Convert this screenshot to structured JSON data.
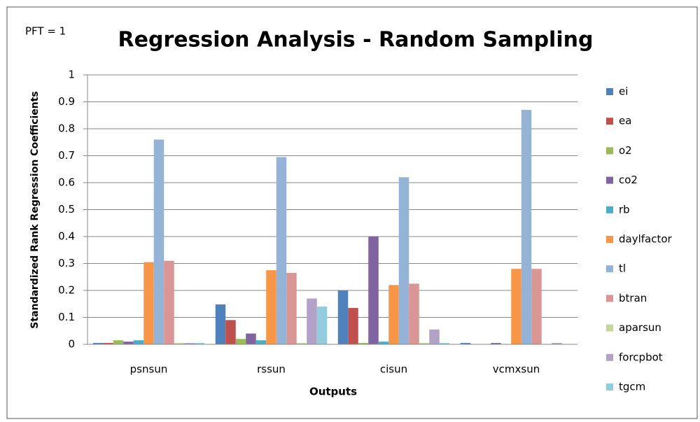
{
  "chart_data": {
    "type": "bar",
    "title": "Regression Analysis - Random Sampling",
    "annotation": "PFT = 1",
    "x_label": "Outputs",
    "y_label": "Standardized Rank Regression Coefficients",
    "categories": [
      "psnsun",
      "rssun",
      "cisun",
      "vcmxsun"
    ],
    "series": [
      {
        "name": "ei",
        "color": "#4f81bd",
        "values": [
          0.005,
          0.148,
          0.2,
          0.005
        ]
      },
      {
        "name": "ea",
        "color": "#c0504d",
        "values": [
          0.005,
          0.09,
          0.135,
          0
        ]
      },
      {
        "name": "o2",
        "color": "#9bbb59",
        "values": [
          0.015,
          0.02,
          0.005,
          0
        ]
      },
      {
        "name": "co2",
        "color": "#8064a2",
        "values": [
          0.01,
          0.04,
          0.4,
          0.005
        ]
      },
      {
        "name": "rb",
        "color": "#4bacc6",
        "values": [
          0.015,
          0.015,
          0.01,
          0
        ]
      },
      {
        "name": "daylfactor",
        "color": "#f79646",
        "values": [
          0.305,
          0.275,
          0.22,
          0.28
        ]
      },
      {
        "name": "tl",
        "color": "#95b3d7",
        "values": [
          0.76,
          0.695,
          0.62,
          0.87
        ]
      },
      {
        "name": "btran",
        "color": "#d99694",
        "values": [
          0.31,
          0.265,
          0.225,
          0.28
        ]
      },
      {
        "name": "aparsun",
        "color": "#c3d69b",
        "values": [
          0.005,
          0.005,
          0.005,
          0
        ]
      },
      {
        "name": "forcpbot",
        "color": "#b3a2c7",
        "values": [
          0.005,
          0.17,
          0.055,
          0.005
        ]
      },
      {
        "name": "tgcm",
        "color": "#93cddd",
        "values": [
          0.005,
          0.14,
          0.005,
          0
        ]
      }
    ],
    "ylim": [
      0,
      1
    ],
    "yticks": [
      0,
      0.1,
      0.2,
      0.3,
      0.4,
      0.5,
      0.6,
      0.7,
      0.8,
      0.9,
      1
    ],
    "grid": true,
    "legend": "right"
  }
}
